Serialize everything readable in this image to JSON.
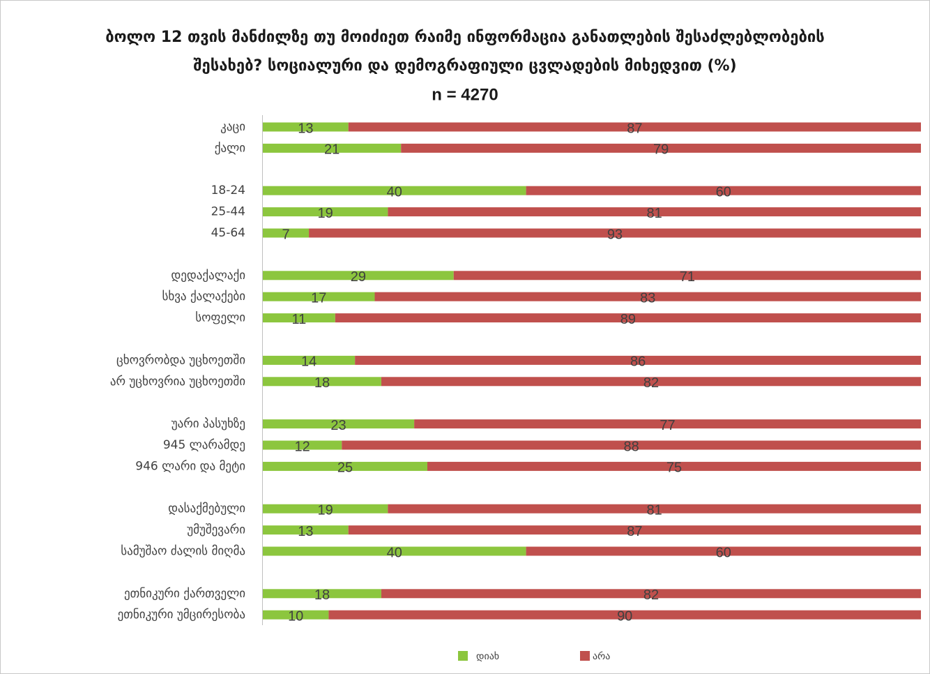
{
  "chart_data": {
    "type": "stacked-bar-horizontal",
    "title": [
      "ბოლო 12 თვის მანძილზე თუ მოიძიეთ რაიმე ინფორმაცია განათლების შესაძლებლობების",
      "შესახებ? სოციალური და დემოგრაფიული ცვლადების მიხედვით (%)"
    ],
    "subtitle": "n = 4270",
    "categories": [
      "კაცი",
      "ქალი",
      null,
      "18-24",
      "25-44",
      "45-64",
      null,
      "დედაქალაქი",
      "სხვა ქალაქები",
      "სოფელი",
      null,
      "ცხოვრობდა უცხოეთში",
      "არ უცხოვრია უცხოეთში",
      null,
      "უარი პასუხზე",
      "945 ლარამდე",
      "946 ლარი და მეტი",
      null,
      "დასაქმებული",
      "უმუშევარი",
      "სამუშაო ძალის მიღმა",
      null,
      "ეთნიკური ქართველი",
      "ეთნიკური უმცირესობა"
    ],
    "series": [
      {
        "name": "დიახ",
        "color": "#8cc63e",
        "values": [
          13,
          21,
          null,
          40,
          19,
          7,
          null,
          29,
          17,
          11,
          null,
          14,
          18,
          null,
          23,
          12,
          25,
          null,
          19,
          13,
          40,
          null,
          18,
          10
        ]
      },
      {
        "name": "არა",
        "color": "#c0504d",
        "values": [
          87,
          79,
          null,
          60,
          81,
          93,
          null,
          71,
          83,
          89,
          null,
          86,
          82,
          null,
          77,
          88,
          75,
          null,
          81,
          87,
          60,
          null,
          82,
          90
        ]
      }
    ],
    "xlim": [
      0,
      100
    ]
  }
}
